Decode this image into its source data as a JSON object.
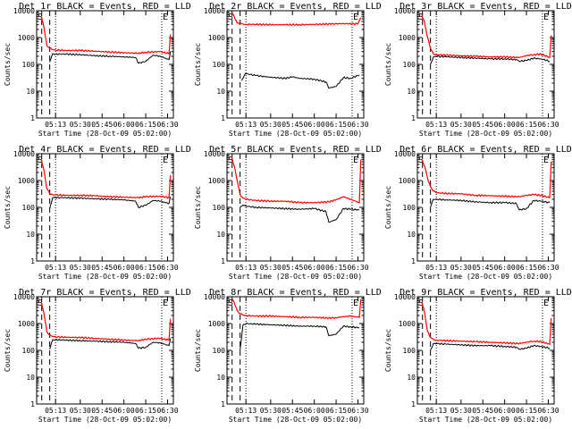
{
  "figure": {
    "y_axis_label": "Counts/sec",
    "x_axis_label": "Start Time (28-Oct-09 05:02:00)"
  },
  "chart_data": [
    {
      "type": "line",
      "title": "Det 1r BLACK = Events, RED = LLD",
      "ylim": [
        1,
        10000
      ],
      "yscale": "log",
      "ytick_labels": [
        "10000",
        "1000",
        "100",
        "10",
        "1"
      ],
      "xtick_labels": [
        "05:13",
        "05:30",
        "05:45",
        "06:00",
        "06:15",
        "06:30"
      ],
      "marker_labels": [
        "S",
        "E"
      ],
      "series": [
        {
          "color": "#ff0000",
          "x": [
            "05:03",
            "05:05",
            "05:07",
            "05:09",
            "05:11",
            "05:13",
            "05:20",
            "05:30",
            "05:40",
            "05:50",
            "06:00",
            "06:10",
            "06:15",
            "06:25",
            "06:31",
            "06:32"
          ],
          "values": [
            6500,
            2500,
            500,
            400,
            350,
            340,
            330,
            330,
            310,
            290,
            270,
            260,
            280,
            300,
            250,
            1300
          ]
        },
        {
          "color": "#000000",
          "x": [
            "05:09",
            "05:11",
            "05:13",
            "05:20",
            "05:30",
            "05:40",
            "05:50",
            "06:00",
            "06:08",
            "06:10",
            "06:15",
            "06:20",
            "06:25",
            "06:31",
            "06:32"
          ],
          "values": [
            120,
            250,
            240,
            240,
            230,
            210,
            200,
            190,
            180,
            110,
            130,
            220,
            200,
            150,
            300
          ]
        }
      ]
    },
    {
      "type": "line",
      "title": "Det 2r BLACK = Events, RED = LLD",
      "ylim": [
        1,
        10000
      ],
      "yscale": "log",
      "ytick_labels": [
        "10000",
        "1000",
        "100",
        "10",
        "1"
      ],
      "xtick_labels": [
        "05:13",
        "05:30",
        "05:45",
        "06:00",
        "06:15",
        "06:30"
      ],
      "marker_labels": [
        "S",
        "E"
      ],
      "series": [
        {
          "color": "#ff0000",
          "x": [
            "05:03",
            "05:05",
            "05:07",
            "05:09",
            "05:11",
            "05:13",
            "05:20",
            "05:30",
            "05:40",
            "05:50",
            "06:00",
            "06:10",
            "06:20",
            "06:30",
            "06:32"
          ],
          "values": [
            9000,
            6000,
            3500,
            3300,
            3200,
            3100,
            3100,
            3000,
            3000,
            3000,
            3100,
            3200,
            3300,
            3200,
            5500
          ]
        },
        {
          "color": "#000000",
          "x": [
            "05:10",
            "05:12",
            "05:13",
            "05:20",
            "05:30",
            "05:40",
            "05:45",
            "05:50",
            "06:00",
            "06:08",
            "06:10",
            "06:15",
            "06:20",
            "06:25",
            "06:31"
          ],
          "values": [
            25,
            40,
            45,
            38,
            33,
            30,
            34,
            30,
            28,
            22,
            13,
            15,
            32,
            30,
            40
          ]
        }
      ]
    },
    {
      "type": "line",
      "title": "Det 3r BLACK = Events, RED = LLD",
      "ylim": [
        1,
        10000
      ],
      "yscale": "log",
      "ytick_labels": [
        "10000",
        "1000",
        "100",
        "10",
        "1"
      ],
      "xtick_labels": [
        "05:13",
        "05:30",
        "05:45",
        "06:00",
        "06:15",
        "06:30"
      ],
      "marker_labels": [
        "S",
        "E"
      ],
      "series": [
        {
          "color": "#ff0000",
          "x": [
            "05:03",
            "05:05",
            "05:07",
            "05:09",
            "05:11",
            "05:13",
            "05:20",
            "05:30",
            "05:40",
            "05:50",
            "06:00",
            "06:10",
            "06:15",
            "06:20",
            "06:25",
            "06:31",
            "06:32"
          ],
          "values": [
            7000,
            3500,
            1000,
            400,
            250,
            230,
            220,
            210,
            200,
            190,
            190,
            180,
            210,
            230,
            240,
            180,
            1200
          ]
        },
        {
          "color": "#000000",
          "x": [
            "05:09",
            "05:11",
            "05:13",
            "05:20",
            "05:30",
            "05:40",
            "05:50",
            "06:00",
            "06:08",
            "06:10",
            "06:15",
            "06:20",
            "06:25",
            "06:31"
          ],
          "values": [
            100,
            190,
            200,
            190,
            180,
            170,
            160,
            160,
            150,
            130,
            140,
            170,
            160,
            130
          ]
        }
      ]
    },
    {
      "type": "line",
      "title": "Det 4r BLACK = Events, RED = LLD",
      "ylim": [
        1,
        10000
      ],
      "yscale": "log",
      "ytick_labels": [
        "10000",
        "1000",
        "100",
        "10",
        "1"
      ],
      "xtick_labels": [
        "05:13",
        "05:30",
        "05:45",
        "06:00",
        "06:15",
        "06:30"
      ],
      "marker_labels": [
        "S",
        "E"
      ],
      "series": [
        {
          "color": "#ff0000",
          "x": [
            "05:03",
            "05:05",
            "05:07",
            "05:09",
            "05:11",
            "05:13",
            "05:20",
            "05:30",
            "05:40",
            "05:50",
            "06:00",
            "06:10",
            "06:15",
            "06:25",
            "06:31",
            "06:32"
          ],
          "values": [
            6500,
            2500,
            500,
            330,
            300,
            290,
            280,
            280,
            270,
            250,
            240,
            230,
            250,
            260,
            230,
            1600
          ]
        },
        {
          "color": "#000000",
          "x": [
            "05:09",
            "05:11",
            "05:13",
            "05:20",
            "05:30",
            "05:40",
            "05:50",
            "06:00",
            "06:08",
            "06:10",
            "06:15",
            "06:20",
            "06:25",
            "06:31",
            "06:32"
          ],
          "values": [
            90,
            230,
            230,
            230,
            220,
            210,
            200,
            190,
            170,
            100,
            120,
            180,
            170,
            140,
            250
          ]
        }
      ]
    },
    {
      "type": "line",
      "title": "Det 5r BLACK = Events, RED = LLD",
      "ylim": [
        1,
        10000
      ],
      "yscale": "log",
      "ytick_labels": [
        "10000",
        "1000",
        "100",
        "10",
        "1"
      ],
      "xtick_labels": [
        "05:13",
        "05:30",
        "05:45",
        "06:00",
        "06:15",
        "06:30"
      ],
      "marker_labels": [
        "S",
        "E"
      ],
      "series": [
        {
          "color": "#ff0000",
          "x": [
            "05:03",
            "05:05",
            "05:07",
            "05:09",
            "05:11",
            "05:13",
            "05:20",
            "05:30",
            "05:40",
            "05:50",
            "06:00",
            "06:10",
            "06:15",
            "06:20",
            "06:25",
            "06:31",
            "06:32"
          ],
          "values": [
            8000,
            3500,
            1000,
            300,
            220,
            200,
            180,
            170,
            170,
            150,
            150,
            160,
            190,
            250,
            200,
            150,
            6000
          ]
        },
        {
          "color": "#000000",
          "x": [
            "05:09",
            "05:11",
            "05:13",
            "05:20",
            "05:30",
            "05:40",
            "05:50",
            "06:00",
            "06:08",
            "06:10",
            "06:15",
            "06:20",
            "06:25",
            "06:31"
          ],
          "values": [
            100,
            120,
            110,
            100,
            95,
            90,
            85,
            90,
            70,
            28,
            35,
            90,
            85,
            80
          ]
        }
      ]
    },
    {
      "type": "line",
      "title": "Det 6r BLACK = Events, RED = LLD",
      "ylim": [
        1,
        10000
      ],
      "yscale": "log",
      "ytick_labels": [
        "10000",
        "1000",
        "100",
        "10",
        "1"
      ],
      "xtick_labels": [
        "05:13",
        "05:30",
        "05:45",
        "06:00",
        "06:15",
        "06:30"
      ],
      "marker_labels": [
        "S",
        "E"
      ],
      "series": [
        {
          "color": "#ff0000",
          "x": [
            "05:03",
            "05:05",
            "05:07",
            "05:09",
            "05:11",
            "05:13",
            "05:20",
            "05:30",
            "05:40",
            "05:50",
            "06:00",
            "06:10",
            "06:15",
            "06:20",
            "06:25",
            "06:31",
            "06:32"
          ],
          "values": [
            6000,
            3500,
            1200,
            600,
            400,
            350,
            330,
            320,
            280,
            270,
            260,
            250,
            280,
            300,
            280,
            230,
            5000
          ]
        },
        {
          "color": "#000000",
          "x": [
            "05:09",
            "05:11",
            "05:13",
            "05:20",
            "05:30",
            "05:40",
            "05:50",
            "06:00",
            "06:08",
            "06:10",
            "06:15",
            "06:20",
            "06:25",
            "06:31"
          ],
          "values": [
            100,
            200,
            200,
            190,
            180,
            160,
            150,
            150,
            140,
            80,
            90,
            180,
            170,
            150
          ]
        }
      ]
    },
    {
      "type": "line",
      "title": "Det 7r BLACK = Events, RED = LLD",
      "ylim": [
        1,
        10000
      ],
      "yscale": "log",
      "ytick_labels": [
        "10000",
        "1000",
        "100",
        "10",
        "1"
      ],
      "xtick_labels": [
        "05:13",
        "05:30",
        "05:45",
        "06:00",
        "06:15",
        "06:30"
      ],
      "marker_labels": [
        "S",
        "E"
      ],
      "series": [
        {
          "color": "#ff0000",
          "x": [
            "05:03",
            "05:05",
            "05:07",
            "05:09",
            "05:11",
            "05:13",
            "05:20",
            "05:30",
            "05:40",
            "05:50",
            "06:00",
            "06:10",
            "06:15",
            "06:25",
            "06:31",
            "06:32"
          ],
          "values": [
            6500,
            2500,
            500,
            360,
            330,
            320,
            310,
            300,
            280,
            260,
            240,
            230,
            260,
            280,
            240,
            1500
          ]
        },
        {
          "color": "#000000",
          "x": [
            "05:09",
            "05:11",
            "05:13",
            "05:20",
            "05:30",
            "05:40",
            "05:50",
            "06:00",
            "06:08",
            "06:10",
            "06:15",
            "06:20",
            "06:25",
            "06:31",
            "06:32"
          ],
          "values": [
            110,
            250,
            250,
            240,
            230,
            220,
            210,
            200,
            180,
            120,
            130,
            200,
            190,
            150,
            280
          ]
        }
      ]
    },
    {
      "type": "line",
      "title": "Det 8r BLACK = Events, RED = LLD",
      "ylim": [
        1,
        10000
      ],
      "yscale": "log",
      "ytick_labels": [
        "10000",
        "1000",
        "100",
        "10",
        "1"
      ],
      "xtick_labels": [
        "05:13",
        "05:30",
        "05:45",
        "06:00",
        "06:15",
        "06:30"
      ],
      "marker_labels": [
        "S",
        "E"
      ],
      "series": [
        {
          "color": "#ff0000",
          "x": [
            "05:03",
            "05:05",
            "05:07",
            "05:09",
            "05:11",
            "05:13",
            "05:20",
            "05:30",
            "05:40",
            "05:50",
            "06:00",
            "06:10",
            "06:15",
            "06:20",
            "06:25",
            "06:31",
            "06:32"
          ],
          "values": [
            9000,
            6000,
            3000,
            2300,
            2100,
            2000,
            1900,
            1900,
            1800,
            1700,
            1700,
            1600,
            1650,
            1800,
            1900,
            1700,
            8000
          ]
        },
        {
          "color": "#000000",
          "x": [
            "05:09",
            "05:11",
            "05:13",
            "05:20",
            "05:30",
            "05:40",
            "05:50",
            "06:00",
            "06:08",
            "06:10",
            "06:15",
            "06:20",
            "06:25",
            "06:31"
          ],
          "values": [
            100,
            900,
            1000,
            950,
            900,
            850,
            800,
            800,
            750,
            350,
            400,
            800,
            750,
            700
          ]
        }
      ]
    },
    {
      "type": "line",
      "title": "Det 9r BLACK = Events, RED = LLD",
      "ylim": [
        1,
        10000
      ],
      "yscale": "log",
      "ytick_labels": [
        "10000",
        "1000",
        "100",
        "10",
        "1"
      ],
      "xtick_labels": [
        "05:13",
        "05:30",
        "05:45",
        "06:00",
        "06:15",
        "06:30"
      ],
      "marker_labels": [
        "S",
        "E"
      ],
      "series": [
        {
          "color": "#ff0000",
          "x": [
            "05:03",
            "05:05",
            "05:07",
            "05:09",
            "05:11",
            "05:13",
            "05:20",
            "05:30",
            "05:40",
            "05:50",
            "06:00",
            "06:10",
            "06:15",
            "06:20",
            "06:25",
            "06:31",
            "06:32"
          ],
          "values": [
            6500,
            2500,
            500,
            300,
            260,
            240,
            230,
            220,
            210,
            200,
            190,
            180,
            200,
            220,
            210,
            170,
            1600
          ]
        },
        {
          "color": "#000000",
          "x": [
            "05:09",
            "05:11",
            "05:13",
            "05:20",
            "05:30",
            "05:40",
            "05:50",
            "06:00",
            "06:08",
            "06:10",
            "06:15",
            "06:20",
            "06:25",
            "06:31"
          ],
          "values": [
            100,
            180,
            180,
            170,
            160,
            150,
            150,
            140,
            130,
            110,
            120,
            150,
            140,
            120
          ]
        }
      ]
    }
  ]
}
